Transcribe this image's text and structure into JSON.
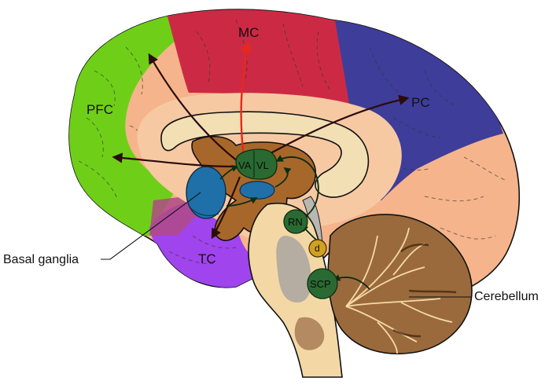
{
  "diagram": {
    "regions": {
      "pfc": "PFC",
      "mc": "MC",
      "pc": "PC",
      "tc": "TC"
    },
    "nuclei": {
      "va": "VA",
      "vl": "VL",
      "rn": "RN",
      "d": "d",
      "scp": "SCP"
    },
    "external_labels": {
      "basal_ganglia": "Basal ganglia",
      "cerebellum": "Cerebellum"
    },
    "colors": {
      "pfc": "#6fcf18",
      "mc": "#cc2a44",
      "pc": "#3f3d9a",
      "tc": "#a044ee",
      "cortex_rest": "#f5b48b",
      "white_matter": "#f7c9a3",
      "corpus_callosum": "#f2dfb4",
      "brown_core": "#a8672a",
      "basal_ganglia": "#1f70a8",
      "nucleus_green": "#2a6a32",
      "dentate": "#d0a020",
      "brainstem": "#f3d8a6",
      "cerebellum": "#9b6a3c",
      "red_arrow": "#e8281c",
      "dark_arrow": "#3a0f0a"
    }
  }
}
